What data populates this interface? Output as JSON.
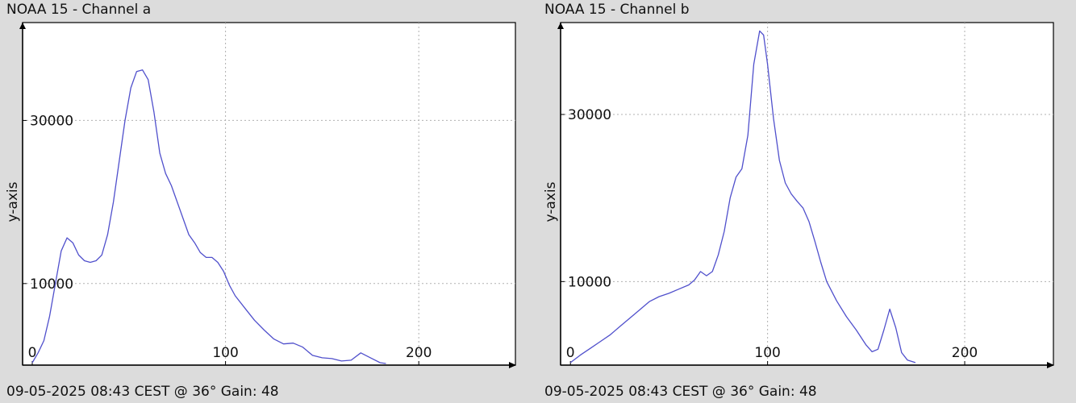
{
  "chart_data": [
    {
      "type": "line",
      "title": "NOAA 15 - Channel a",
      "footer": "09-05-2025 08:43 CEST @ 36° Gain: 48",
      "ylabel": "y-axis",
      "xlim": [
        -5,
        250
      ],
      "ylim": [
        0,
        42000
      ],
      "xticks": [
        {
          "value": 0,
          "label": "0"
        },
        {
          "value": 100,
          "label": "100"
        },
        {
          "value": 200,
          "label": "200"
        }
      ],
      "yticks": [
        {
          "value": 10000,
          "label": "10000"
        },
        {
          "value": 30000,
          "label": "30000"
        }
      ],
      "grid": true,
      "line_color": "#5050cc",
      "series": [
        {
          "x": [
            0,
            3,
            6,
            9,
            12,
            15,
            18,
            21,
            24,
            27,
            30,
            33,
            36,
            39,
            42,
            45,
            48,
            51,
            54,
            57,
            60,
            63,
            66,
            69,
            72,
            75,
            78,
            81,
            84,
            87,
            90,
            93,
            96,
            99,
            102,
            105,
            110,
            115,
            120,
            125,
            130,
            135,
            140,
            145,
            150,
            155,
            160,
            165,
            170,
            175,
            180,
            183
          ],
          "y": [
            300,
            1500,
            3000,
            6000,
            10000,
            14000,
            15600,
            15000,
            13500,
            12800,
            12600,
            12800,
            13500,
            16000,
            20000,
            25000,
            30000,
            34000,
            36000,
            36200,
            35000,
            31000,
            26000,
            23500,
            22000,
            20000,
            18000,
            16000,
            15000,
            13800,
            13200,
            13200,
            12600,
            11500,
            9800,
            8500,
            7000,
            5500,
            4300,
            3200,
            2600,
            2700,
            2200,
            1200,
            900,
            800,
            500,
            600,
            1500,
            900,
            300,
            200
          ]
        }
      ]
    },
    {
      "type": "line",
      "title": "NOAA 15 - Channel b",
      "footer": "09-05-2025 08:43 CEST @ 36° Gain: 48",
      "ylabel": "y-axis",
      "xlim": [
        -5,
        245
      ],
      "ylim": [
        0,
        41000
      ],
      "xticks": [
        {
          "value": 0,
          "label": "0"
        },
        {
          "value": 100,
          "label": "100"
        },
        {
          "value": 200,
          "label": "200"
        }
      ],
      "yticks": [
        {
          "value": 10000,
          "label": "10000"
        },
        {
          "value": 30000,
          "label": "30000"
        }
      ],
      "grid": true,
      "line_color": "#5050cc",
      "series": [
        {
          "x": [
            0,
            5,
            10,
            15,
            20,
            25,
            30,
            35,
            40,
            45,
            50,
            55,
            60,
            63,
            66,
            69,
            72,
            75,
            78,
            81,
            84,
            87,
            90,
            93,
            96,
            98,
            100,
            103,
            106,
            109,
            112,
            115,
            118,
            121,
            124,
            127,
            130,
            135,
            140,
            145,
            150,
            153,
            156,
            159,
            162,
            165,
            168,
            171,
            175
          ],
          "y": [
            300,
            1200,
            2000,
            2800,
            3600,
            4600,
            5600,
            6600,
            7600,
            8200,
            8600,
            9100,
            9600,
            10200,
            11200,
            10700,
            11200,
            13200,
            16000,
            20000,
            22500,
            23500,
            27500,
            36000,
            40000,
            39500,
            36000,
            29500,
            24500,
            21800,
            20500,
            19600,
            18800,
            17200,
            14800,
            12300,
            10000,
            7700,
            5800,
            4200,
            2400,
            1600,
            1900,
            4200,
            6700,
            4500,
            1500,
            600,
            300
          ]
        }
      ]
    }
  ]
}
